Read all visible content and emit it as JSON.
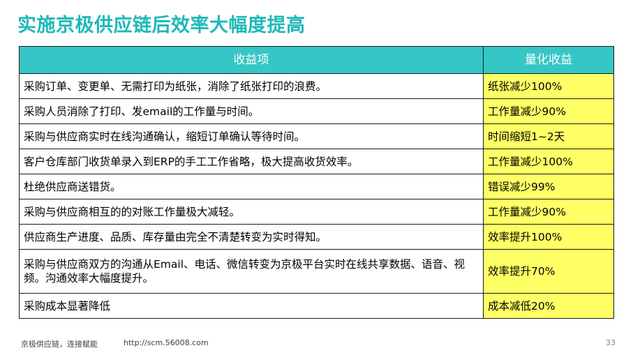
{
  "title": "实施京极供应链后效率大幅度提高",
  "table": {
    "headers": [
      "收益项",
      "量化收益"
    ],
    "rows": [
      {
        "item": "采购订单、变更单、无需打印为纸张，消除了纸张打印的浪费。",
        "value": "纸张减少100%"
      },
      {
        "item": "采购人员消除了打印、发email的工作量与时间。",
        "value": "工作量减少90%"
      },
      {
        "item": "采购与供应商实时在线沟通确认，缩短订单确认等待时间。",
        "value": "时间缩短1~2天"
      },
      {
        "item": "客户仓库部门收货单录入到ERP的手工工作省略，极大提高收货效率。",
        "value": "工作量减少100%"
      },
      {
        "item": "杜绝供应商送错货。",
        "value": "错误减少99%"
      },
      {
        "item": "采购与供应商相互的的对账工作量极大减轻。",
        "value": "工作量减少90%"
      },
      {
        "item": "供应商生产进度、品质、库存量由完全不清楚转变为实时得知。",
        "value": "效率提升100%"
      },
      {
        "item": "采购与供应商双方的沟通从Email、电话、微信转变为京极平台实时在线共享数据、语音、视频。沟通效率大幅度提升。",
        "value": "效率提升70%"
      },
      {
        "item": "采购成本显著降低",
        "value": "成本减低20%"
      }
    ]
  },
  "footer": {
    "slogan": "京极供应链，连接赋能",
    "url": "http://scm.56008.com",
    "page": "33"
  }
}
